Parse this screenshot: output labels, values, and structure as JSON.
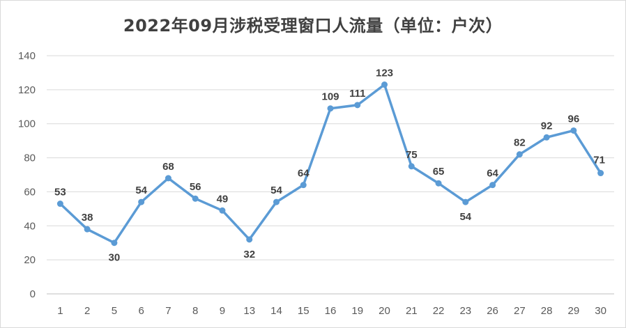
{
  "chart_data": {
    "type": "line",
    "title": "2022年09月涉税受理窗口人流量（单位：户次）",
    "categories": [
      "1",
      "2",
      "5",
      "6",
      "7",
      "8",
      "9",
      "13",
      "14",
      "15",
      "16",
      "19",
      "20",
      "21",
      "22",
      "23",
      "26",
      "27",
      "28",
      "29",
      "30"
    ],
    "series": [
      {
        "values": [
          53,
          38,
          30,
          54,
          68,
          56,
          49,
          32,
          54,
          64,
          109,
          111,
          123,
          75,
          65,
          54,
          64,
          82,
          92,
          96,
          71
        ],
        "color": "#5b9bd5"
      }
    ],
    "ylim": [
      0,
      140
    ],
    "yticks": [
      0,
      20,
      40,
      60,
      80,
      100,
      120,
      140
    ],
    "grid": true,
    "data_labels": true,
    "legend": "none"
  }
}
